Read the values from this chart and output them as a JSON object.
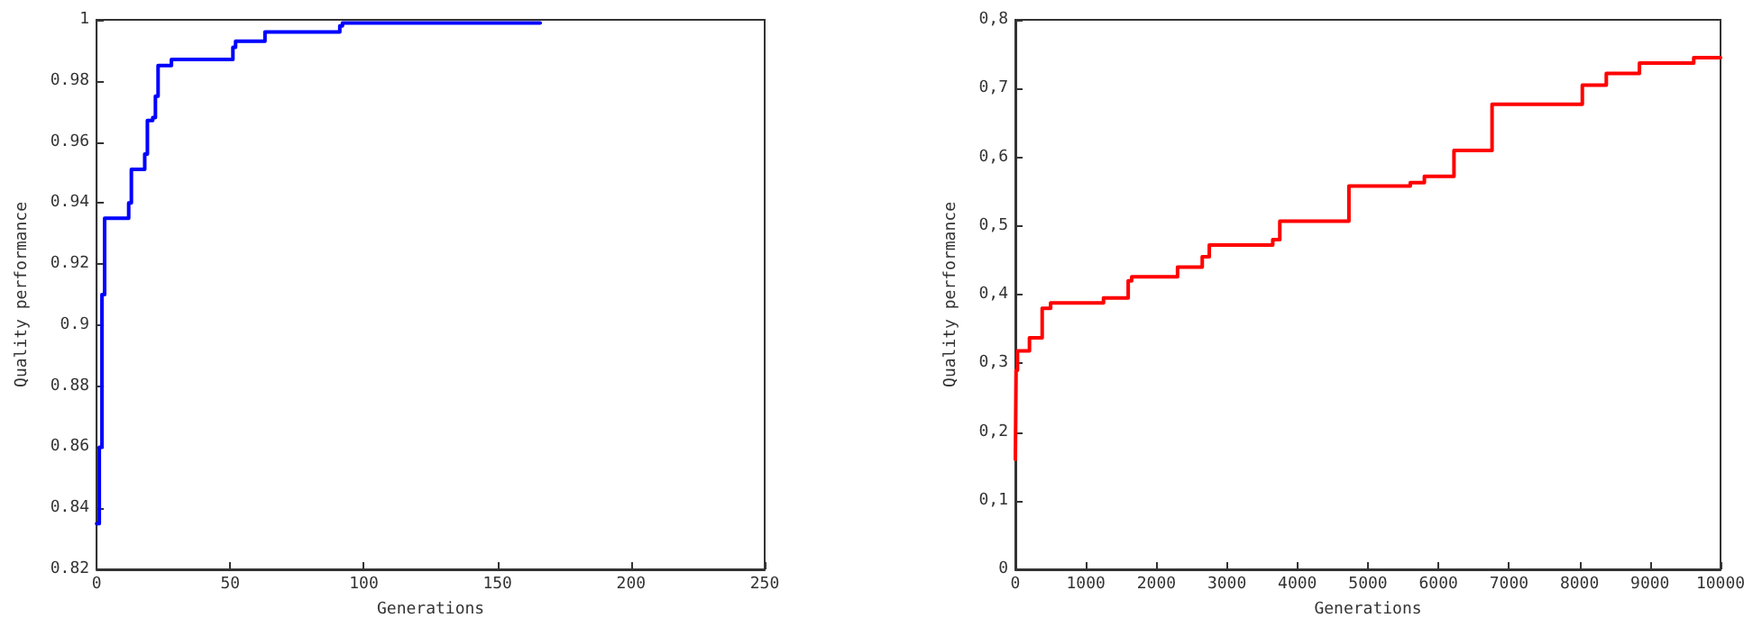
{
  "chart_data": [
    {
      "type": "step",
      "xlabel": "Generations",
      "ylabel": "Quality performance",
      "xlim": [
        0,
        250
      ],
      "xticks": [
        0,
        50,
        100,
        150,
        200,
        250
      ],
      "ylim": [
        0.82,
        1
      ],
      "yticks": [
        {
          "value": 0.82,
          "label": "0.82"
        },
        {
          "value": 0.84,
          "label": "0.84"
        },
        {
          "value": 0.86,
          "label": "0.86"
        },
        {
          "value": 0.88,
          "label": "0.88"
        },
        {
          "value": 0.9,
          "label": "0.9"
        },
        {
          "value": 0.92,
          "label": "0.92"
        },
        {
          "value": 0.94,
          "label": "0.94"
        },
        {
          "value": 0.96,
          "label": "0.96"
        },
        {
          "value": 0.98,
          "label": "0.98"
        },
        {
          "value": 1,
          "label": "1"
        }
      ],
      "grid": false,
      "marker": "none",
      "line_style": "solid",
      "series": [
        {
          "color": "#0000ff",
          "x": [
            0,
            1,
            2,
            3,
            12,
            13,
            18,
            19,
            21,
            22,
            23,
            28,
            51,
            52,
            63,
            91,
            92,
            166
          ],
          "values": [
            0.835,
            0.86,
            0.91,
            0.935,
            0.94,
            0.951,
            0.956,
            0.967,
            0.968,
            0.975,
            0.985,
            0.987,
            0.991,
            0.993,
            0.996,
            0.998,
            0.999,
            0.999
          ]
        }
      ]
    },
    {
      "type": "step",
      "xlabel": "Generations",
      "ylabel": "Quality performance",
      "xlim": [
        0,
        10000
      ],
      "xticks": [
        0,
        1000,
        2000,
        3000,
        4000,
        5000,
        6000,
        7000,
        8000,
        9000,
        10000
      ],
      "ylim": [
        0,
        0.8
      ],
      "yticks": [
        {
          "value": 0,
          "label": "0"
        },
        {
          "value": 0.1,
          "label": "0,1"
        },
        {
          "value": 0.2,
          "label": "0,2"
        },
        {
          "value": 0.3,
          "label": "0,3"
        },
        {
          "value": 0.4,
          "label": "0,4"
        },
        {
          "value": 0.5,
          "label": "0,5"
        },
        {
          "value": 0.6,
          "label": "0,6"
        },
        {
          "value": 0.7,
          "label": "0,7"
        },
        {
          "value": 0.8,
          "label": "0,8"
        }
      ],
      "grid": false,
      "marker": "none",
      "line_style": "solid",
      "series": [
        {
          "color": "#ff0000",
          "x": [
            0,
            10,
            30,
            200,
            380,
            500,
            1250,
            1600,
            1650,
            2300,
            2650,
            2750,
            3650,
            3750,
            4730,
            5600,
            5800,
            6220,
            6760,
            8040,
            8380,
            8850,
            9620,
            10000
          ],
          "values": [
            0.16,
            0.29,
            0.318,
            0.337,
            0.38,
            0.388,
            0.395,
            0.42,
            0.426,
            0.44,
            0.455,
            0.472,
            0.48,
            0.507,
            0.558,
            0.563,
            0.572,
            0.61,
            0.677,
            0.705,
            0.722,
            0.737,
            0.745,
            0.745
          ]
        }
      ]
    }
  ]
}
